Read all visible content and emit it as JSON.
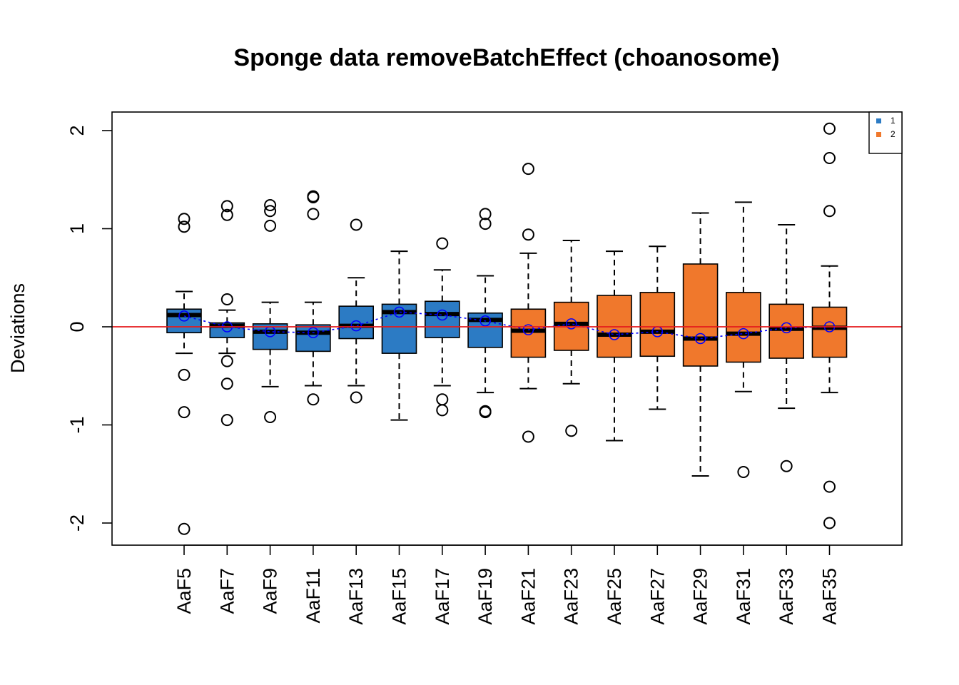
{
  "chart_data": {
    "type": "boxplot",
    "title": "Sponge data removeBatchEffect (choanosome)",
    "xlabel": "",
    "ylabel": "Deviations",
    "ylim": [
      -2.2,
      2.2
    ],
    "yticks": [
      -2,
      -1,
      0,
      1,
      2
    ],
    "reference_line": {
      "y": 0,
      "color": "#e41a1c"
    },
    "mean_line_color": "#0000ff",
    "legend": {
      "position": "top-right",
      "entries": [
        {
          "label": "1",
          "color": "#2c7bc4"
        },
        {
          "label": "2",
          "color": "#f0782c"
        }
      ]
    },
    "categories": [
      "AaF5",
      "AaF7",
      "AaF9",
      "AaF11",
      "AaF13",
      "AaF15",
      "AaF17",
      "AaF19",
      "AaF21",
      "AaF23",
      "AaF25",
      "AaF27",
      "AaF29",
      "AaF31",
      "AaF33",
      "AaF35"
    ],
    "boxes": [
      {
        "label": "AaF5",
        "group": "1",
        "whisker_low": -0.27,
        "q1": -0.06,
        "median": 0.12,
        "q3": 0.18,
        "whisker_high": 0.36,
        "mean": 0.11,
        "outliers": [
          1.1,
          1.02,
          -0.49,
          -0.87,
          -2.06
        ]
      },
      {
        "label": "AaF7",
        "group": "1",
        "whisker_low": -0.27,
        "q1": -0.11,
        "median": 0.01,
        "q3": 0.04,
        "whisker_high": 0.17,
        "mean": 0.0,
        "outliers": [
          1.23,
          1.14,
          0.28,
          -0.35,
          -0.58,
          -0.95
        ]
      },
      {
        "label": "AaF9",
        "group": "1",
        "whisker_low": -0.61,
        "q1": -0.23,
        "median": -0.05,
        "q3": 0.03,
        "whisker_high": 0.25,
        "mean": -0.05,
        "outliers": [
          1.24,
          1.18,
          1.03,
          -0.92
        ]
      },
      {
        "label": "AaF11",
        "group": "1",
        "whisker_low": -0.6,
        "q1": -0.25,
        "median": -0.06,
        "q3": 0.02,
        "whisker_high": 0.25,
        "mean": -0.06,
        "outliers": [
          1.33,
          1.32,
          1.15,
          -0.74
        ]
      },
      {
        "label": "AaF13",
        "group": "1",
        "whisker_low": -0.6,
        "q1": -0.12,
        "median": 0.01,
        "q3": 0.21,
        "whisker_high": 0.5,
        "mean": 0.01,
        "outliers": [
          1.04,
          -0.72
        ]
      },
      {
        "label": "AaF15",
        "group": "1",
        "whisker_low": -0.95,
        "q1": -0.27,
        "median": 0.15,
        "q3": 0.23,
        "whisker_high": 0.77,
        "mean": 0.15,
        "outliers": []
      },
      {
        "label": "AaF17",
        "group": "1",
        "whisker_low": -0.6,
        "q1": -0.11,
        "median": 0.13,
        "q3": 0.26,
        "whisker_high": 0.58,
        "mean": 0.12,
        "outliers": [
          0.85,
          -0.74,
          -0.85
        ]
      },
      {
        "label": "AaF19",
        "group": "1",
        "whisker_low": -0.67,
        "q1": -0.21,
        "median": 0.07,
        "q3": 0.14,
        "whisker_high": 0.52,
        "mean": 0.06,
        "outliers": [
          1.15,
          1.05,
          -0.86,
          -0.87
        ]
      },
      {
        "label": "AaF21",
        "group": "2",
        "whisker_low": -0.63,
        "q1": -0.31,
        "median": -0.04,
        "q3": 0.18,
        "whisker_high": 0.75,
        "mean": -0.03,
        "outliers": [
          1.61,
          0.94,
          -1.12
        ]
      },
      {
        "label": "AaF23",
        "group": "2",
        "whisker_low": -0.58,
        "q1": -0.24,
        "median": 0.03,
        "q3": 0.25,
        "whisker_high": 0.88,
        "mean": 0.03,
        "outliers": [
          -1.06
        ]
      },
      {
        "label": "AaF25",
        "group": "2",
        "whisker_low": -1.16,
        "q1": -0.31,
        "median": -0.08,
        "q3": 0.32,
        "whisker_high": 0.77,
        "mean": -0.08,
        "outliers": []
      },
      {
        "label": "AaF27",
        "group": "2",
        "whisker_low": -0.84,
        "q1": -0.3,
        "median": -0.05,
        "q3": 0.35,
        "whisker_high": 0.82,
        "mean": -0.05,
        "outliers": []
      },
      {
        "label": "AaF29",
        "group": "2",
        "whisker_low": -1.52,
        "q1": -0.4,
        "median": -0.12,
        "q3": 0.64,
        "whisker_high": 1.16,
        "mean": -0.12,
        "outliers": []
      },
      {
        "label": "AaF31",
        "group": "2",
        "whisker_low": -0.66,
        "q1": -0.36,
        "median": -0.07,
        "q3": 0.35,
        "whisker_high": 1.27,
        "mean": -0.07,
        "outliers": [
          -1.48
        ]
      },
      {
        "label": "AaF33",
        "group": "2",
        "whisker_low": -0.83,
        "q1": -0.32,
        "median": -0.02,
        "q3": 0.23,
        "whisker_high": 1.04,
        "mean": -0.01,
        "outliers": [
          -1.42
        ]
      },
      {
        "label": "AaF35",
        "group": "2",
        "whisker_low": -0.67,
        "q1": -0.31,
        "median": -0.01,
        "q3": 0.2,
        "whisker_high": 0.62,
        "mean": 0.0,
        "outliers": [
          2.02,
          1.72,
          1.18,
          -1.63,
          -2.0
        ]
      }
    ]
  }
}
